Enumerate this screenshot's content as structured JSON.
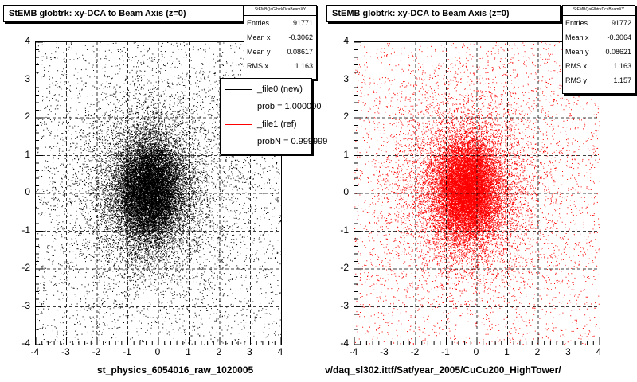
{
  "chart_data": [
    {
      "type": "scatter",
      "title": "StEMB globtrk: xy-DCA to Beam Axis (z=0)",
      "color": "#000000",
      "xlim": [
        -4,
        4
      ],
      "ylim": [
        -4,
        4
      ],
      "xticks": [
        "-4",
        "-3",
        "-2",
        "-1",
        "0",
        "1",
        "2",
        "3",
        "4"
      ],
      "yticks": [
        "-4",
        "-3",
        "-2",
        "-1",
        "0",
        "1",
        "2",
        "3",
        "4"
      ],
      "grid": true,
      "xlabel": "st_physics_6054016_raw_1020005",
      "stats": {
        "header": "StEMBQaGlbtrkDcaBeamXY",
        "rows": [
          {
            "label": "Entries",
            "value": "91771"
          },
          {
            "label": "Mean x",
            "value": "-0.3062"
          },
          {
            "label": "Mean y",
            "value": "0.08617"
          },
          {
            "label": "RMS x",
            "value": "1.163"
          }
        ]
      },
      "distribution": {
        "entries": 91771,
        "mean_x": -0.3062,
        "mean_y": 0.08617,
        "rms_x": 1.163,
        "rms_y": 1.157
      }
    },
    {
      "type": "scatter",
      "title": "StEMB globtrk: xy-DCA to Beam Axis (z=0)",
      "color": "#ff0000",
      "xlim": [
        -4,
        4
      ],
      "ylim": [
        -4,
        4
      ],
      "xticks": [
        "-4",
        "-3",
        "-2",
        "-1",
        "0",
        "1",
        "2",
        "3",
        "4"
      ],
      "yticks": [
        "-4",
        "-3",
        "-2",
        "-1",
        "0",
        "1",
        "2",
        "3",
        "4"
      ],
      "grid": true,
      "xlabel": "v/daq_sl302.ittf/Sat/year_2005/CuCu200_HighTower/",
      "stats": {
        "header": "StEMBQaGlbtrkDcaBeamXY",
        "rows": [
          {
            "label": "Entries",
            "value": "91772"
          },
          {
            "label": "Mean x",
            "value": "-0.3064"
          },
          {
            "label": "Mean y",
            "value": "0.08621"
          },
          {
            "label": "RMS x",
            "value": "1.163"
          },
          {
            "label": "RMS y",
            "value": "1.157"
          }
        ]
      },
      "distribution": {
        "entries": 91772,
        "mean_x": -0.3064,
        "mean_y": 0.08621,
        "rms_x": 1.163,
        "rms_y": 1.157
      }
    }
  ],
  "legend": {
    "entries": [
      {
        "label": "_file0 (new)",
        "color": "#000000"
      },
      {
        "label": "prob = 1.000000",
        "color": "#000000"
      },
      {
        "label": "_file1 (ref)",
        "color": "#ff0000"
      },
      {
        "label": "probN = 0.999999",
        "color": "#ff0000"
      }
    ]
  }
}
